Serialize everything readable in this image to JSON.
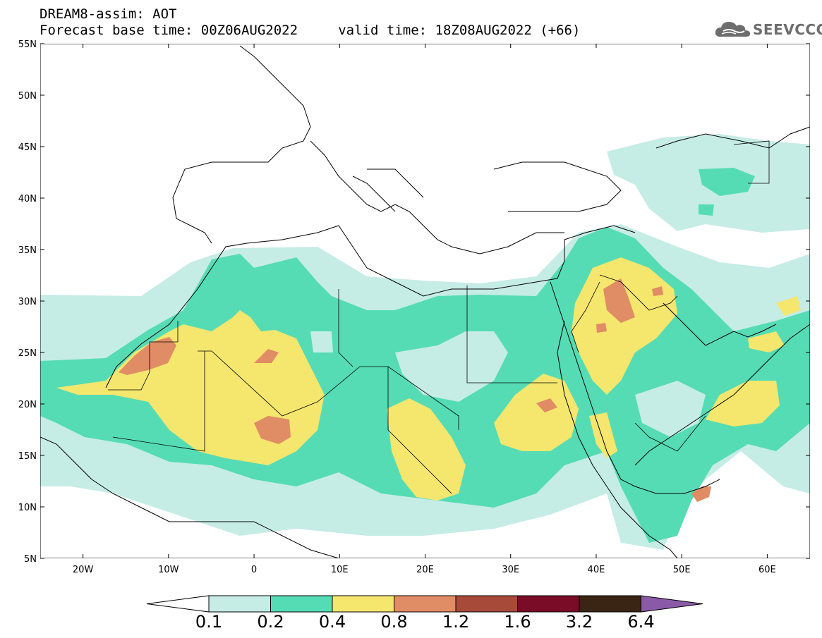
{
  "title": {
    "line1": "DREAM8-assim: AOT",
    "line2": "Forecast base time: 00Z06AUG2022     valid time: 18Z08AUG2022 (+66)"
  },
  "logo": {
    "text": "SEEVCCC",
    "icon": "cloud-icon"
  },
  "map": {
    "lat_labels": [
      "55N",
      "50N",
      "45N",
      "40N",
      "35N",
      "30N",
      "25N",
      "20N",
      "15N",
      "10N",
      "5N"
    ],
    "lon_labels": [
      "20W",
      "10W",
      "0",
      "10E",
      "20E",
      "30E",
      "40E",
      "50E",
      "60E"
    ],
    "lon_range": [
      -25,
      65
    ],
    "lat_range": [
      5,
      55
    ]
  },
  "colorbar": {
    "labels": [
      "0.1",
      "0.2",
      "0.4",
      "0.8",
      "1.2",
      "1.6",
      "3.2",
      "6.4"
    ],
    "colors": [
      "#ffffff",
      "#c6ece6",
      "#55dcb4",
      "#f5e66e",
      "#e08c64",
      "#a84a3a",
      "#7a0c28",
      "#3a2414",
      "#8a5aa8"
    ]
  },
  "aot_colors": {
    "low": "#c6ece6",
    "moderate": "#55dcb4",
    "high": "#f5e66e",
    "very_high": "#e08c64"
  }
}
